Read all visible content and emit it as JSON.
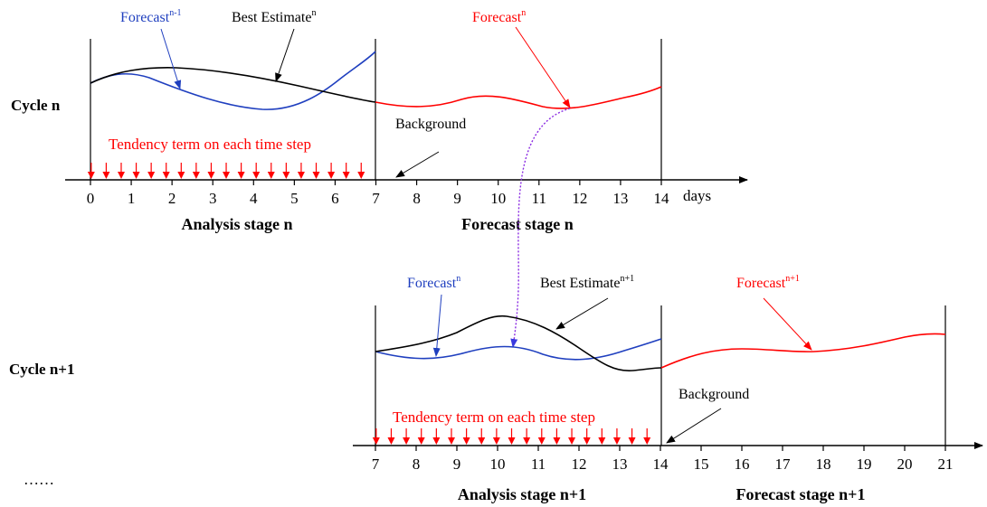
{
  "cycles": [
    {
      "cycle_label": "Cycle n",
      "stage_labels": {
        "analysis": "Analysis stage n",
        "forecast": "Forecast stage n"
      },
      "unit_label": "days",
      "ticks": [
        "0",
        "1",
        "2",
        "3",
        "4",
        "5",
        "6",
        "7",
        "8",
        "9",
        "10",
        "11",
        "12",
        "13",
        "14"
      ],
      "annotations": {
        "forecast_prev": {
          "base": "Forecast",
          "sup": "n-1"
        },
        "best_estimate": {
          "base": "Best Estimate",
          "sup": "n"
        },
        "forecast": {
          "base": "Forecast",
          "sup": "n"
        },
        "background": "Background",
        "tendency": "Tendency term on each time step"
      }
    },
    {
      "cycle_label": "Cycle n+1",
      "stage_labels": {
        "analysis": "Analysis stage n+1",
        "forecast": "Forecast stage n+1"
      },
      "unit_label": "",
      "ticks": [
        "7",
        "8",
        "9",
        "10",
        "11",
        "12",
        "13",
        "14",
        "15",
        "16",
        "17",
        "18",
        "19",
        "20",
        "21"
      ],
      "annotations": {
        "forecast_prev": {
          "base": "Forecast",
          "sup": "n"
        },
        "best_estimate": {
          "base": "Best Estimate",
          "sup": "n+1"
        },
        "forecast": {
          "base": "Forecast",
          "sup": "n+1"
        },
        "background": "Background",
        "tendency": "Tendency term on each time step"
      }
    }
  ],
  "ellipsis": "……",
  "colors": {
    "forecast_prev": "#1f3fbf",
    "forecast": "#ff0000",
    "best_estimate": "#000000",
    "tendency": "#ff0000",
    "link": "#8a2be2"
  }
}
